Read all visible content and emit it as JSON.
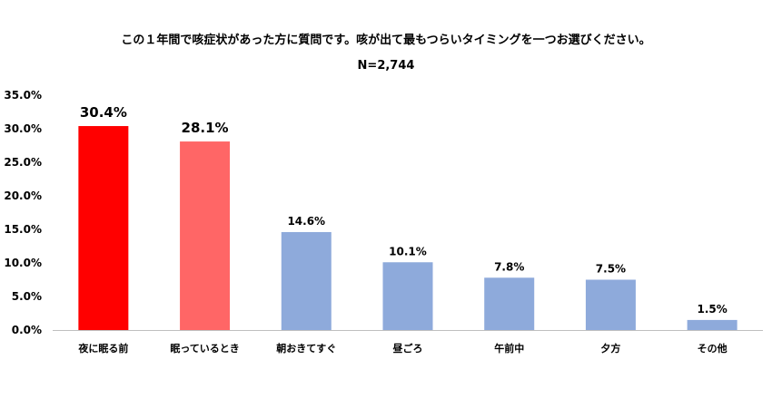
{
  "chart_data": {
    "type": "bar",
    "title": "この１年間で咳症状があった方に質問です。咳が出て最もつらいタイミングを一つお選びください。",
    "subtitle": "N=2,744",
    "xlabel": "",
    "ylabel": "",
    "ylim": [
      0,
      35
    ],
    "yticks": [
      "0.0%",
      "5.0%",
      "10.0%",
      "15.0%",
      "20.0%",
      "25.0%",
      "30.0%",
      "35.0%"
    ],
    "grid": false,
    "categories": [
      "夜に眠る前",
      "眠っているとき",
      "朝おきてすぐ",
      "昼ごろ",
      "午前中",
      "夕方",
      "その他"
    ],
    "values": [
      30.4,
      28.1,
      14.6,
      10.1,
      7.8,
      7.5,
      1.5
    ],
    "data_labels": [
      "30.4%",
      "28.1%",
      "14.6%",
      "10.1%",
      "7.8%",
      "7.5%",
      "1.5%"
    ],
    "colors": [
      "#ff0000",
      "#ff6666",
      "#8eaadb",
      "#8eaadb",
      "#8eaadb",
      "#8eaadb",
      "#8eaadb"
    ]
  }
}
